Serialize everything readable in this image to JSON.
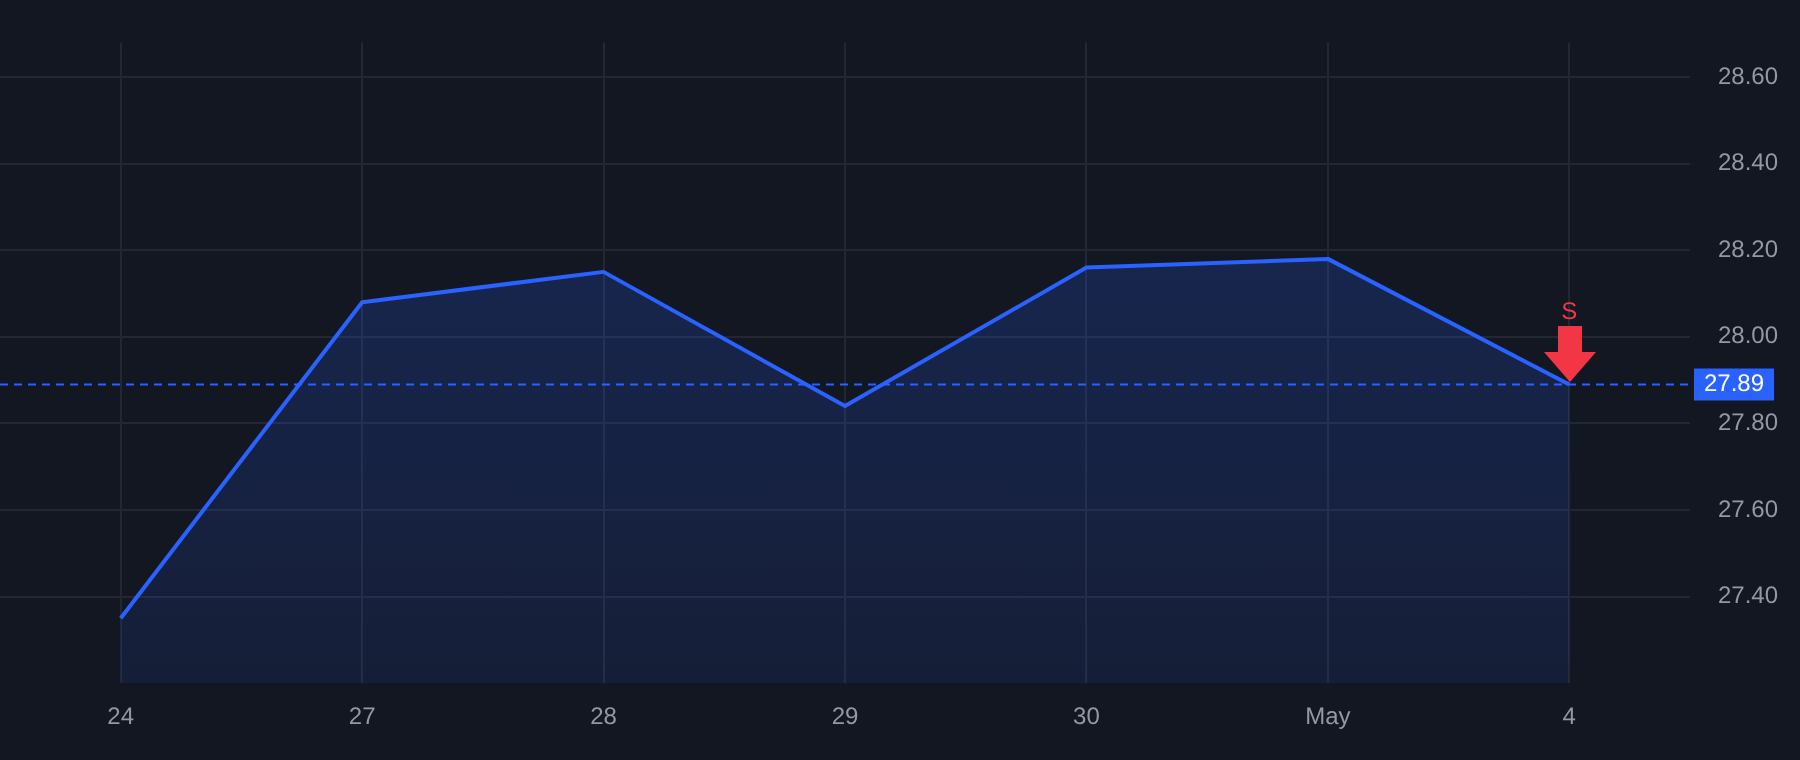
{
  "chart_data": {
    "type": "area",
    "categories": [
      "24",
      "27",
      "28",
      "29",
      "30",
      "May",
      "4"
    ],
    "series": [
      {
        "color": "#2962ff",
        "values": [
          27.35,
          28.08,
          28.15,
          27.84,
          28.16,
          28.18,
          27.89
        ]
      }
    ],
    "ylim": [
      27.2,
      28.68
    ],
    "yticks": [
      {
        "value": 27.4,
        "label": "27.40"
      },
      {
        "value": 27.6,
        "label": "27.60"
      },
      {
        "value": 27.8,
        "label": "27.80"
      },
      {
        "value": 28.0,
        "label": "28.00"
      },
      {
        "value": 28.2,
        "label": "28.20"
      },
      {
        "value": 28.4,
        "label": "28.40"
      },
      {
        "value": 28.6,
        "label": "28.60"
      }
    ],
    "grid": true,
    "legend": false,
    "marker": "none",
    "line_style": "solid",
    "ref_lines": [
      {
        "axis": "y",
        "value": 27.89,
        "label": "27.89",
        "color": "#2962ff",
        "line_style": "dashed"
      }
    ],
    "annotations": [
      {
        "text": "S",
        "x": "4",
        "y": 27.89
      }
    ]
  }
}
